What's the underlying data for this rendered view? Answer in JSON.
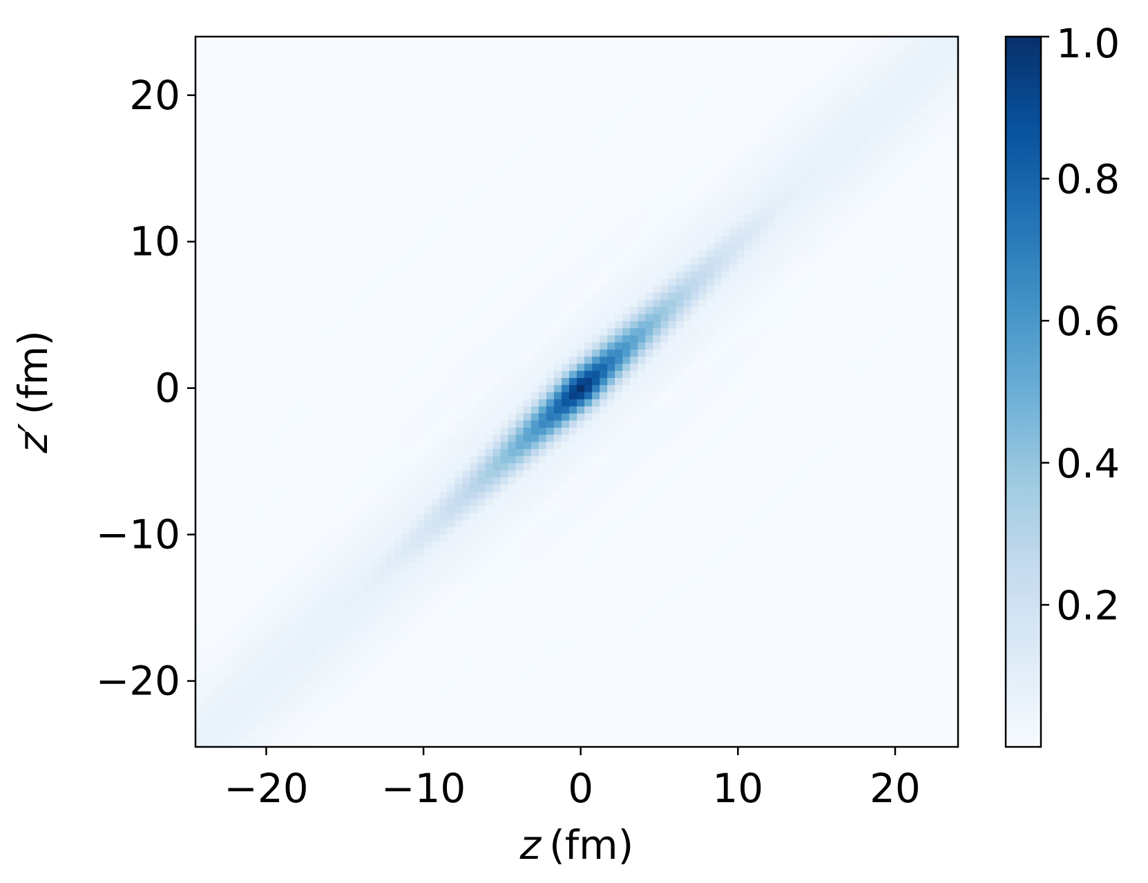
{
  "chart_data": {
    "type": "heatmap",
    "title": "",
    "x_axis": {
      "variable": "z",
      "unit": "(fm)",
      "range": [
        -24.5,
        24
      ],
      "ticks": [
        {
          "value": -20,
          "label": "−20"
        },
        {
          "value": -10,
          "label": "−10"
        },
        {
          "value": 0,
          "label": "0"
        },
        {
          "value": 10,
          "label": "10"
        },
        {
          "value": 20,
          "label": "20"
        }
      ]
    },
    "y_axis": {
      "variable": "z′",
      "unit": "(fm)",
      "range": [
        -24.5,
        24
      ],
      "ticks": [
        {
          "value": -20,
          "label": "−20"
        },
        {
          "value": -10,
          "label": "−10"
        },
        {
          "value": 0,
          "label": "0"
        },
        {
          "value": 10,
          "label": "10"
        },
        {
          "value": 20,
          "label": "20"
        }
      ]
    },
    "colorbar": {
      "colormap": "Blues",
      "range": [
        0.0,
        1.0
      ],
      "ticks": [
        {
          "value": 0.2,
          "label": "0.2"
        },
        {
          "value": 0.4,
          "label": "0.4"
        },
        {
          "value": 0.6,
          "label": "0.6"
        },
        {
          "value": 0.8,
          "label": "0.8"
        },
        {
          "value": 1.0,
          "label": "1.0"
        }
      ],
      "color_stops": [
        "#f7fbff",
        "#deebf7",
        "#c6dbef",
        "#9ecae1",
        "#6baed6",
        "#4292c6",
        "#2171b5",
        "#08519c",
        "#08306b"
      ]
    },
    "grid": false,
    "field": {
      "description_of_shape": "ridge along z = z′",
      "peak_value": 1.0,
      "peak_at": [
        0,
        0
      ],
      "diagonal_width_fm": 0.9,
      "diagonal_decay_length_fm": 7.5,
      "tail_floor": 0.07,
      "faint_fringes_amplitude": 0.02
    }
  }
}
